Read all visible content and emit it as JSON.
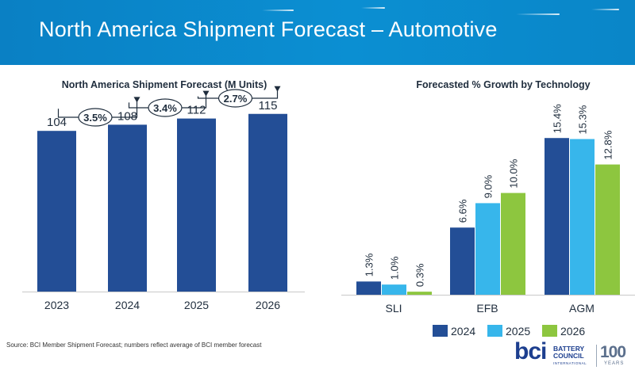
{
  "header": {
    "title": "North America Shipment Forecast – Automotive"
  },
  "colors": {
    "banner": "#0b8fd2",
    "bar_navy": "#234e96",
    "bar_sky": "#37b6eb",
    "bar_green": "#8dc63f"
  },
  "chart_data": [
    {
      "type": "bar",
      "title": "North America Shipment Forecast (M Units)",
      "categories": [
        "2023",
        "2024",
        "2025",
        "2026"
      ],
      "values": [
        104,
        108,
        112,
        115
      ],
      "value_labels": [
        "104",
        "108",
        "112",
        "115"
      ],
      "ylim": [
        0,
        120
      ],
      "grid": false,
      "annotations": [
        {
          "from": "2023",
          "to": "2024",
          "text": "3.5%"
        },
        {
          "from": "2024",
          "to": "2025",
          "text": "3.4%"
        },
        {
          "from": "2025",
          "to": "2026",
          "text": "2.7%"
        }
      ]
    },
    {
      "type": "bar",
      "title": "Forecasted % Growth by Technology",
      "categories": [
        "SLI",
        "EFB",
        "AGM"
      ],
      "series": [
        {
          "name": "2024",
          "values": [
            1.3,
            6.6,
            15.4
          ],
          "labels": [
            "1.3%",
            "6.6%",
            "15.4%"
          ]
        },
        {
          "name": "2025",
          "values": [
            1.0,
            9.0,
            15.3
          ],
          "labels": [
            "1.0%",
            "9.0%",
            "15.3%"
          ]
        },
        {
          "name": "2026",
          "values": [
            0.3,
            10.0,
            12.8
          ],
          "labels": [
            "0.3%",
            "10.0%",
            "12.8%"
          ]
        }
      ],
      "ylim": [
        0,
        16
      ],
      "grid": false,
      "legend": "bottom"
    }
  ],
  "footer": {
    "source": "Source: BCI Member Shipment Forecast; numbers reflect average of BCI member forecast"
  },
  "logo": {
    "mark": "bci",
    "line1": "BATTERY",
    "line2": "COUNCIL",
    "line3": "INTERNATIONAL",
    "anniversary": "100",
    "anniversary_unit": "YEARS"
  }
}
